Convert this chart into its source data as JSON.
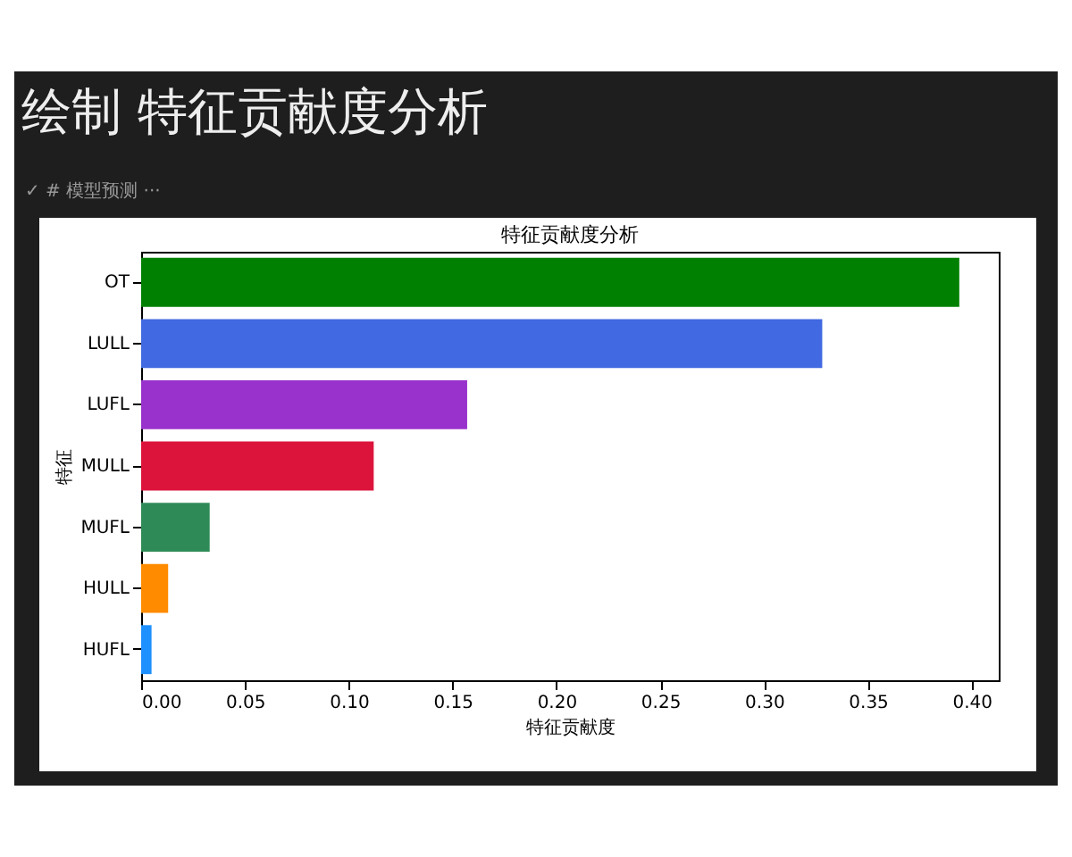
{
  "chart_data": {
    "type": "bar",
    "orientation": "horizontal",
    "title": "特征贡献度分析",
    "xlabel": "特征贡献度",
    "ylabel": "特征",
    "annotations": [
      "绘制 特征贡献度分析",
      "✓ # 模型预测 ···"
    ],
    "categories": [
      "OT",
      "LULL",
      "LUFL",
      "MULL",
      "MUFL",
      "HULL",
      "HUFL"
    ],
    "values": [
      0.394,
      0.328,
      0.157,
      0.112,
      0.033,
      0.013,
      0.005
    ],
    "colors": [
      "#008000",
      "#4169e1",
      "#9932cc",
      "#dc143c",
      "#2e8b57",
      "#ff8c00",
      "#1e90ff"
    ],
    "xlim": [
      0,
      0.413
    ],
    "xticks": [
      {
        "value": 0,
        "label": "0.00"
      },
      {
        "value": 0.05,
        "label": "0.05"
      },
      {
        "value": 0.1,
        "label": "0.10"
      },
      {
        "value": 0.15,
        "label": "0.15"
      },
      {
        "value": 0.2,
        "label": "0.20"
      },
      {
        "value": 0.25,
        "label": "0.25"
      },
      {
        "value": 0.3,
        "label": "0.30"
      },
      {
        "value": 0.35,
        "label": "0.35"
      },
      {
        "value": 0.4,
        "label": "0.40"
      }
    ],
    "grid": false
  }
}
